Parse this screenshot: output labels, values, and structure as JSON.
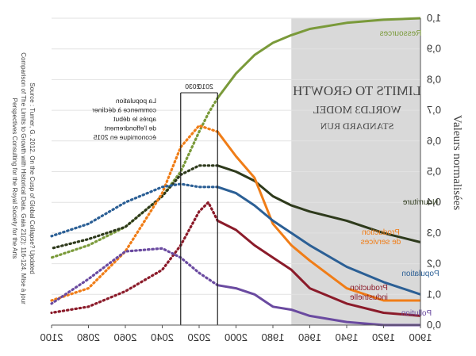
{
  "chart_data": {
    "type": "line",
    "title_lines": [
      "LIMITS TO GROWTH",
      "WORLD3 MODEL",
      "STANDARD RUN"
    ],
    "ylabel": "Valeurs normalisées",
    "xlim": [
      1900,
      2100
    ],
    "ylim": [
      0,
      1
    ],
    "x_ticks": [
      "1900",
      "1920",
      "1940",
      "1960",
      "1980",
      "2000",
      "2020",
      "2040",
      "2060",
      "2080",
      "2100"
    ],
    "x_tick_values": [
      1900,
      1920,
      1940,
      1960,
      1980,
      2000,
      2020,
      2040,
      2060,
      2080,
      2100
    ],
    "y_ticks": [
      "0,0",
      "0,1",
      "0,2",
      "0,3",
      "0,4",
      "0,5",
      "0,6",
      "0,7",
      "0,8",
      "0,9",
      "1,0"
    ],
    "y_tick_values": [
      0,
      0.1,
      0.2,
      0.3,
      0.4,
      0.5,
      0.6,
      0.7,
      0.8,
      0.9,
      1.0
    ],
    "axes_mirrored": true,
    "historical_shading": {
      "from": 1900,
      "to": 1970,
      "color": "#d9d9d9"
    },
    "markers": [
      {
        "year": 2010,
        "label": "2010"
      },
      {
        "year": 2030,
        "label": "2030"
      }
    ],
    "annotation_lines": [
      "La population",
      "commence à décliner",
      "après le début",
      "de l'effondrement",
      "économique en 2015"
    ],
    "source_lines": [
      "Source : Turner, G. 2012. On the Cusp of Global Collapse? Updated",
      "Comparison of The Limits to Growth with Historical Data. Gaia 21(2): 116-124. Mise à jour",
      "Perspectives Consulting for the Royal Society for the Arts"
    ],
    "series": [
      {
        "name": "Ressources",
        "label_lines": [
          "Ressources"
        ],
        "color": "#7a9a3a",
        "solid": [
          [
            1900,
            1.0
          ],
          [
            1920,
            0.995
          ],
          [
            1940,
            0.985
          ],
          [
            1960,
            0.965
          ],
          [
            1970,
            0.945
          ],
          [
            1980,
            0.92
          ],
          [
            1990,
            0.88
          ],
          [
            2000,
            0.82
          ],
          [
            2010,
            0.74
          ]
        ],
        "dotted": [
          [
            2010,
            0.74
          ],
          [
            2015,
            0.69
          ],
          [
            2020,
            0.63
          ],
          [
            2030,
            0.5
          ],
          [
            2040,
            0.42
          ],
          [
            2060,
            0.32
          ],
          [
            2080,
            0.26
          ],
          [
            2100,
            0.22
          ]
        ]
      },
      {
        "name": "Nourriture",
        "label_lines": [
          "Nourriture"
        ],
        "color": "#2e3a1c",
        "solid": [
          [
            1900,
            0.27
          ],
          [
            1920,
            0.3
          ],
          [
            1940,
            0.34
          ],
          [
            1960,
            0.37
          ],
          [
            1970,
            0.39
          ],
          [
            1980,
            0.42
          ],
          [
            1990,
            0.47
          ],
          [
            2000,
            0.5
          ],
          [
            2010,
            0.52
          ]
        ],
        "dotted": [
          [
            2010,
            0.52
          ],
          [
            2020,
            0.52
          ],
          [
            2030,
            0.49
          ],
          [
            2040,
            0.42
          ],
          [
            2060,
            0.32
          ],
          [
            2080,
            0.28
          ],
          [
            2100,
            0.25
          ]
        ]
      },
      {
        "name": "Production de services",
        "label_lines": [
          "Production",
          "de services"
        ],
        "color": "#f07d17",
        "solid": [
          [
            1900,
            0.08
          ],
          [
            1920,
            0.08
          ],
          [
            1940,
            0.12
          ],
          [
            1960,
            0.21
          ],
          [
            1970,
            0.26
          ],
          [
            1980,
            0.33
          ],
          [
            1990,
            0.48
          ],
          [
            2000,
            0.55
          ],
          [
            2010,
            0.63
          ]
        ],
        "dotted": [
          [
            2010,
            0.63
          ],
          [
            2020,
            0.65
          ],
          [
            2030,
            0.58
          ],
          [
            2040,
            0.43
          ],
          [
            2060,
            0.24
          ],
          [
            2080,
            0.12
          ],
          [
            2100,
            0.08
          ]
        ]
      },
      {
        "name": "Population",
        "label_lines": [
          "Population"
        ],
        "color": "#2b5f95",
        "solid": [
          [
            1900,
            0.1
          ],
          [
            1920,
            0.14
          ],
          [
            1940,
            0.19
          ],
          [
            1960,
            0.26
          ],
          [
            1970,
            0.3
          ],
          [
            1980,
            0.34
          ],
          [
            1990,
            0.39
          ],
          [
            2000,
            0.43
          ],
          [
            2010,
            0.45
          ]
        ],
        "dotted": [
          [
            2010,
            0.45
          ],
          [
            2020,
            0.45
          ],
          [
            2030,
            0.46
          ],
          [
            2040,
            0.45
          ],
          [
            2060,
            0.4
          ],
          [
            2080,
            0.33
          ],
          [
            2100,
            0.29
          ]
        ]
      },
      {
        "name": "Production industrielle",
        "label_lines": [
          "Production",
          "industrielle"
        ],
        "color": "#8b1b2a",
        "solid": [
          [
            1900,
            0.03
          ],
          [
            1920,
            0.04
          ],
          [
            1940,
            0.07
          ],
          [
            1960,
            0.12
          ],
          [
            1970,
            0.18
          ],
          [
            1980,
            0.22
          ],
          [
            1990,
            0.26
          ],
          [
            2000,
            0.31
          ],
          [
            2010,
            0.34
          ]
        ],
        "dotted": [
          [
            2010,
            0.34
          ],
          [
            2015,
            0.4
          ],
          [
            2020,
            0.37
          ],
          [
            2030,
            0.26
          ],
          [
            2040,
            0.18
          ],
          [
            2060,
            0.11
          ],
          [
            2080,
            0.06
          ],
          [
            2100,
            0.04
          ]
        ]
      },
      {
        "name": "Pollution",
        "label_lines": [
          "Pollution"
        ],
        "color": "#6a4aa0",
        "solid": [
          [
            1900,
            0.0
          ],
          [
            1920,
            0.0
          ],
          [
            1940,
            0.01
          ],
          [
            1960,
            0.03
          ],
          [
            1970,
            0.05
          ],
          [
            1980,
            0.06
          ],
          [
            1990,
            0.1
          ],
          [
            2000,
            0.12
          ],
          [
            2010,
            0.13
          ]
        ],
        "dotted": [
          [
            2010,
            0.13
          ],
          [
            2020,
            0.17
          ],
          [
            2030,
            0.22
          ],
          [
            2040,
            0.25
          ],
          [
            2060,
            0.24
          ],
          [
            2080,
            0.15
          ],
          [
            2100,
            0.07
          ]
        ]
      }
    ]
  }
}
